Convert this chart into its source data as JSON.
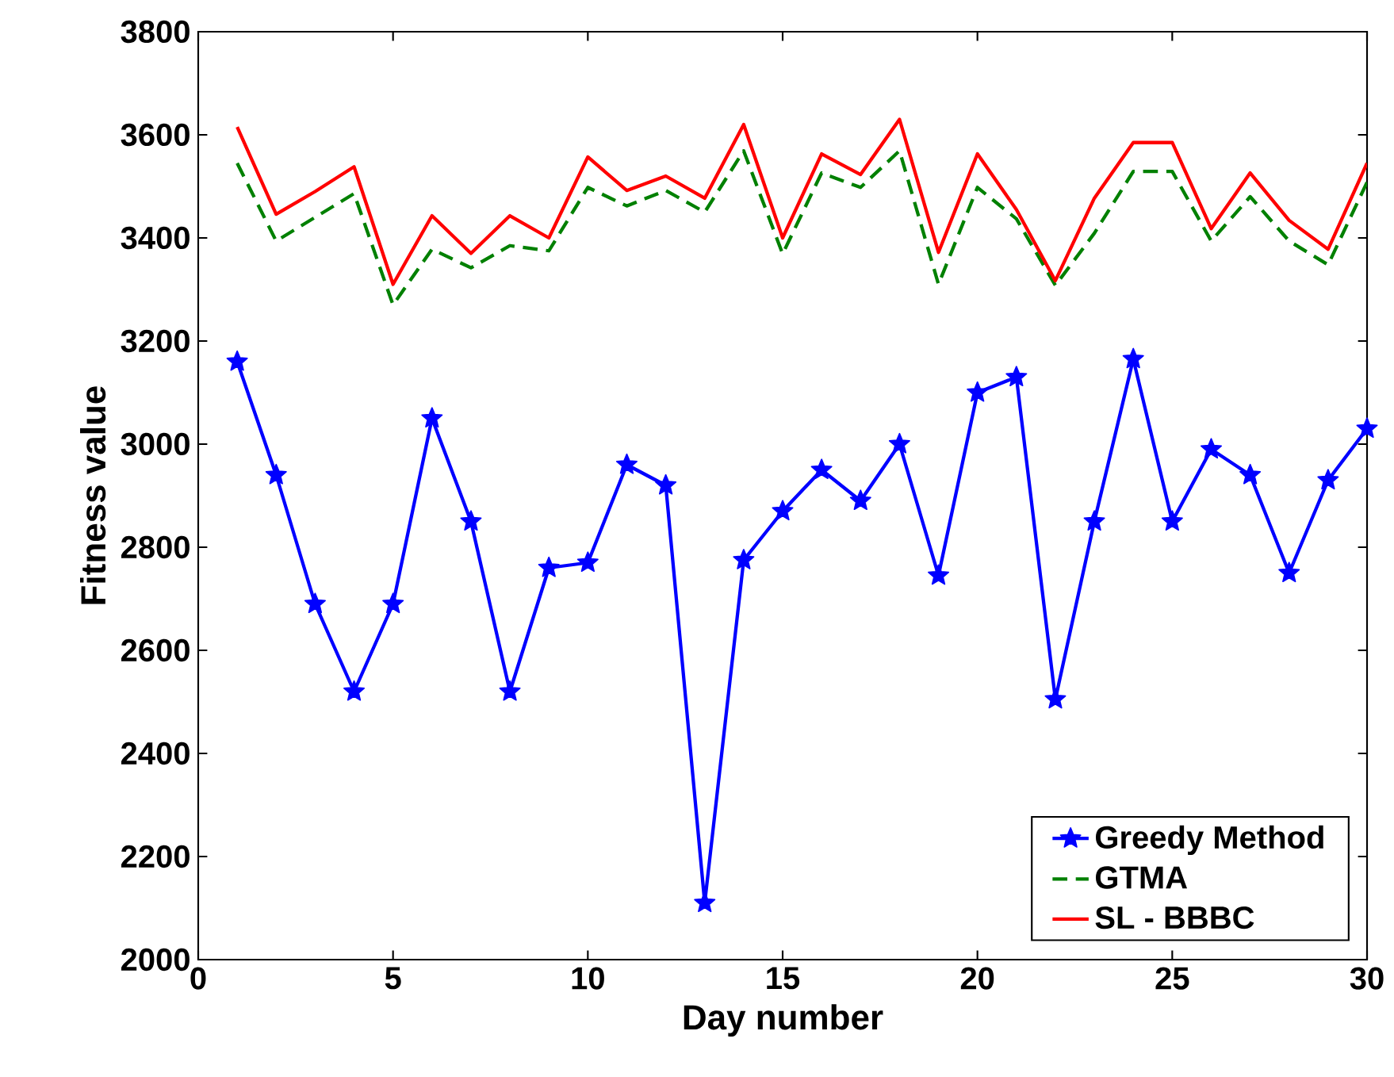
{
  "chart_data": {
    "type": "line",
    "xlabel": "Day number",
    "ylabel": "Fitness value",
    "x": [
      1,
      2,
      3,
      4,
      5,
      6,
      7,
      8,
      9,
      10,
      11,
      12,
      13,
      14,
      15,
      16,
      17,
      18,
      19,
      20,
      21,
      22,
      23,
      24,
      25,
      26,
      27,
      28,
      29,
      30
    ],
    "series": [
      {
        "name": "Greedy Method",
        "color": "#0000ff",
        "marker": "star",
        "line_style": "solid",
        "values": [
          3160,
          2940,
          2690,
          2520,
          2690,
          3050,
          2850,
          2520,
          2760,
          2770,
          2960,
          2920,
          2110,
          2775,
          2870,
          2950,
          2890,
          3000,
          2745,
          3100,
          3130,
          2505,
          2850,
          3165,
          2850,
          2990,
          2940,
          2750,
          2930,
          3030
        ]
      },
      {
        "name": "GTMA",
        "color": "#008000",
        "marker": "none",
        "line_style": "dashed",
        "values": [
          3545,
          3394,
          3440,
          3486,
          3270,
          3378,
          3342,
          3385,
          3375,
          3498,
          3462,
          3492,
          3450,
          3569,
          3369,
          3526,
          3498,
          3569,
          3310,
          3498,
          3437,
          3308,
          3409,
          3529,
          3529,
          3394,
          3480,
          3394,
          3348,
          3508
        ]
      },
      {
        "name": "SL - BBBC",
        "color": "#ff0000",
        "marker": "none",
        "line_style": "solid",
        "values": [
          3615,
          3446,
          3490,
          3538,
          3310,
          3443,
          3370,
          3443,
          3400,
          3557,
          3492,
          3520,
          3477,
          3620,
          3400,
          3563,
          3523,
          3630,
          3372,
          3563,
          3455,
          3317,
          3477,
          3585,
          3585,
          3418,
          3526,
          3434,
          3378,
          3545
        ]
      }
    ],
    "xlim": [
      0,
      30
    ],
    "xticks": [
      0,
      5,
      10,
      15,
      20,
      25,
      30
    ],
    "ylim": [
      2000,
      3800
    ],
    "yticks": [
      2000,
      2200,
      2400,
      2600,
      2800,
      3000,
      3200,
      3400,
      3600,
      3800
    ],
    "grid": false,
    "legend": "bottom right"
  }
}
